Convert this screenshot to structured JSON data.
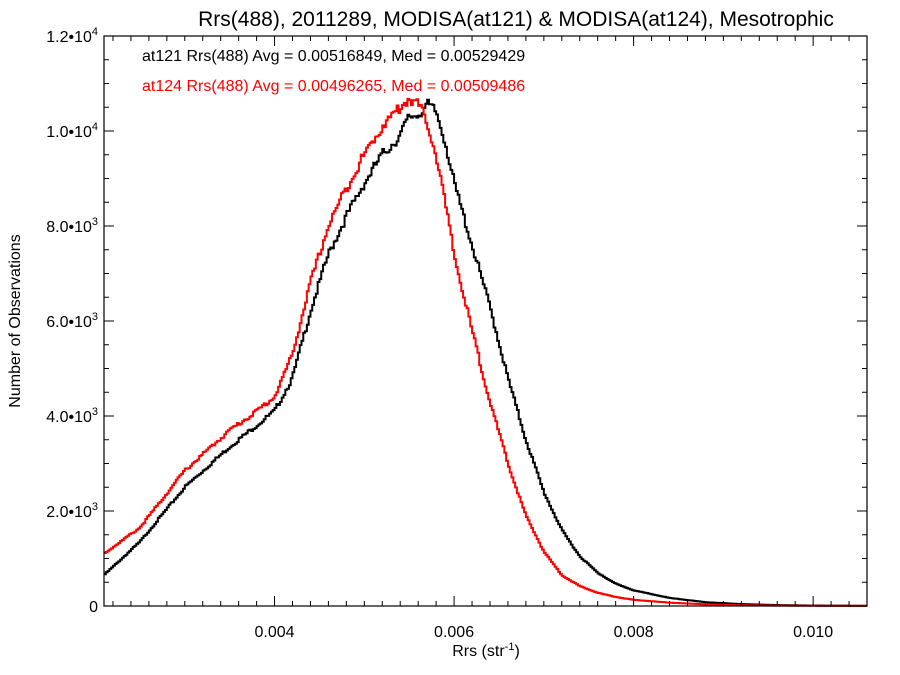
{
  "chart_data": {
    "type": "line",
    "title": "Rrs(488), 2011289, MODISA(at121) & MODISA(at124), Mesotrophic",
    "xlabel": "Rrs (str",
    "xlabel_sup": "-1",
    "xlabel_end": ")",
    "ylabel": "Number of Observations",
    "xlim": [
      0.0021,
      0.0106
    ],
    "ylim": [
      0,
      12000
    ],
    "x_ticks": [
      0.004,
      0.006,
      0.008,
      0.01
    ],
    "x_tick_labels": [
      "0.004",
      "0.006",
      "0.008",
      "0.010"
    ],
    "y_ticks": [
      0,
      2000,
      4000,
      6000,
      8000,
      10000,
      12000
    ],
    "y_tick_labels": [
      {
        "mantissa": "0",
        "exp": ""
      },
      {
        "mantissa": "2.0•10",
        "exp": "3"
      },
      {
        "mantissa": "4.0•10",
        "exp": "3"
      },
      {
        "mantissa": "6.0•10",
        "exp": "3"
      },
      {
        "mantissa": "8.0•10",
        "exp": "3"
      },
      {
        "mantissa": "1.0•10",
        "exp": "4"
      },
      {
        "mantissa": "1.2•10",
        "exp": "4"
      }
    ],
    "annotations": [
      {
        "text": "at121 Rrs(488) Avg = 0.00516849, Med = 0.00529429",
        "color": "#000000"
      },
      {
        "text": "at124 Rrs(488) Avg = 0.00496265, Med = 0.00509486",
        "color": "#ff0000"
      }
    ],
    "series": [
      {
        "color": "#000000",
        "x": [
          0.0021,
          0.0025,
          0.003,
          0.0035,
          0.0038,
          0.004,
          0.0042,
          0.0044,
          0.0046,
          0.0048,
          0.005,
          0.0052,
          0.0054,
          0.0055,
          0.0056,
          0.0057,
          0.0058,
          0.0059,
          0.006,
          0.0062,
          0.0064,
          0.0066,
          0.0068,
          0.007,
          0.0072,
          0.0074,
          0.0076,
          0.0078,
          0.008,
          0.0084,
          0.0088,
          0.0092,
          0.0096,
          0.01,
          0.0106
        ],
        "y": [
          650,
          1350,
          2500,
          3350,
          3800,
          4100,
          4800,
          6200,
          7400,
          8200,
          8900,
          9500,
          9900,
          10300,
          10350,
          10550,
          10400,
          9800,
          8900,
          7600,
          6300,
          4800,
          3500,
          2400,
          1600,
          1050,
          700,
          470,
          330,
          170,
          80,
          40,
          20,
          10,
          5
        ]
      },
      {
        "color": "#ff0000",
        "x": [
          0.0021,
          0.0025,
          0.003,
          0.0035,
          0.0038,
          0.004,
          0.0042,
          0.0044,
          0.0046,
          0.0048,
          0.005,
          0.0052,
          0.0053,
          0.0054,
          0.0055,
          0.0056,
          0.0057,
          0.0058,
          0.0059,
          0.006,
          0.0062,
          0.0064,
          0.0066,
          0.0068,
          0.007,
          0.0072,
          0.0074,
          0.0076,
          0.0078,
          0.008,
          0.0084,
          0.0088,
          0.0092,
          0.0096,
          0.01,
          0.0106
        ],
        "y": [
          1100,
          1650,
          2850,
          3700,
          4100,
          4400,
          5300,
          6800,
          8000,
          8800,
          9500,
          10100,
          10300,
          10500,
          10700,
          10550,
          10200,
          9500,
          8500,
          7400,
          5800,
          4300,
          3000,
          1900,
          1150,
          650,
          420,
          280,
          190,
          130,
          70,
          35,
          15,
          8,
          4,
          2
        ]
      }
    ]
  }
}
